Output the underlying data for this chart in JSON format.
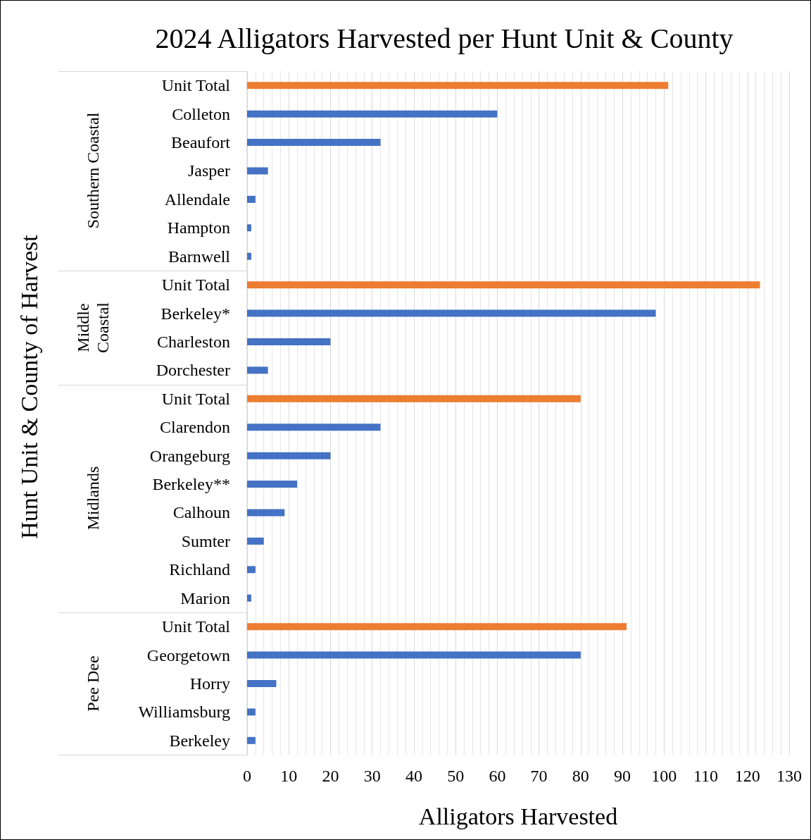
{
  "chart_data": {
    "type": "bar",
    "orientation": "horizontal",
    "title": "2024 Alligators Harvested per Hunt Unit & County",
    "xlabel": "Alligators Harvested",
    "ylabel": "Hunt Unit & County of Harvest",
    "categories": [
      "Unit Total",
      "Colleton",
      "Beaufort",
      "Jasper",
      "Allendale",
      "Hampton",
      "Barnwell",
      "Unit Total",
      "Berkeley*",
      "Charleston",
      "Dorchester",
      "Unit Total",
      "Clarendon",
      "Orangeburg",
      "Berkeley**",
      "Calhoun",
      "Sumter",
      "Richland",
      "Marion",
      "Unit Total",
      "Georgetown",
      "Horry",
      "Williamsburg",
      "Berkeley"
    ],
    "values": [
      101,
      60,
      32,
      5,
      2,
      1,
      1,
      123,
      98,
      20,
      5,
      80,
      32,
      20,
      12,
      9,
      4,
      2,
      1,
      91,
      80,
      7,
      2,
      2
    ],
    "colors": [
      "#ed7d31",
      "#4472c4",
      "#4472c4",
      "#4472c4",
      "#4472c4",
      "#4472c4",
      "#4472c4",
      "#ed7d31",
      "#4472c4",
      "#4472c4",
      "#4472c4",
      "#ed7d31",
      "#4472c4",
      "#4472c4",
      "#4472c4",
      "#4472c4",
      "#4472c4",
      "#4472c4",
      "#4472c4",
      "#ed7d31",
      "#4472c4",
      "#4472c4",
      "#4472c4",
      "#4472c4"
    ],
    "annotations": [
      "Southern Coastal",
      "Middle Coastal",
      "Midlands",
      "Pee Dee"
    ],
    "xlim": [
      0,
      130
    ],
    "xticks": [
      0,
      10,
      20,
      30,
      40,
      50,
      60,
      70,
      80,
      90,
      100,
      110,
      120,
      130
    ],
    "grid": "x"
  }
}
